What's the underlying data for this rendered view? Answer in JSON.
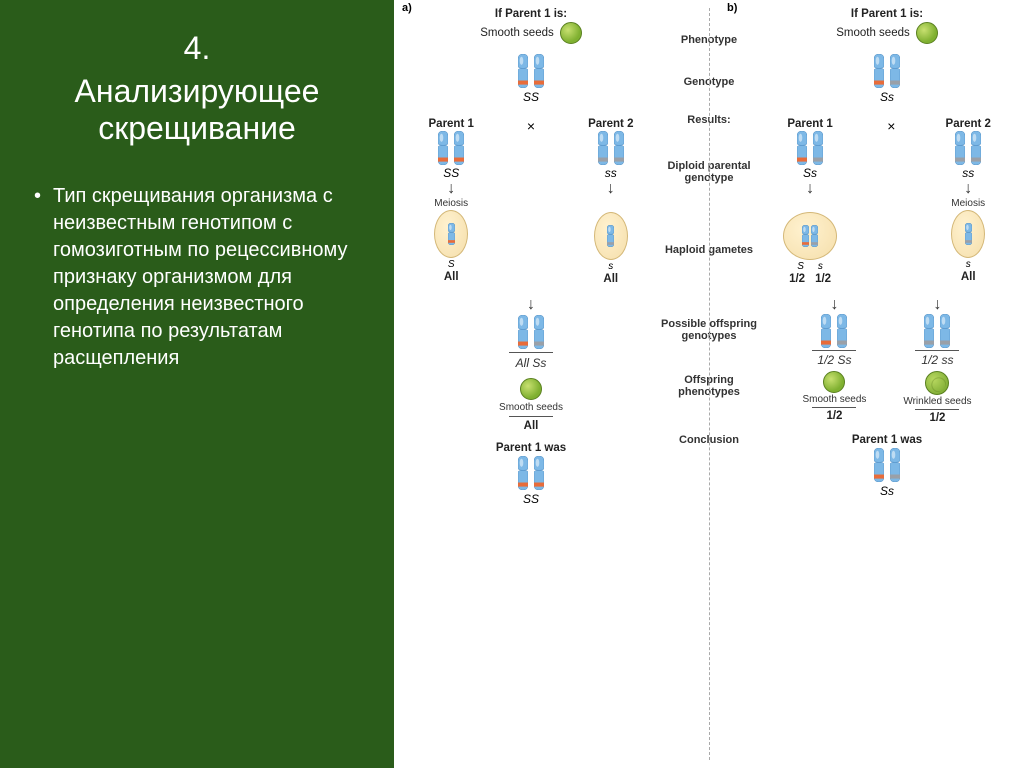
{
  "slide": {
    "number": "4.",
    "title": "Анализирующее скрещивание",
    "bullet": "Тип скрещивания организма с неизвестным генотипом с гомозиготным по рецессивному признаку организмом для определения неизвестного генотипа  по результатам расщепления"
  },
  "diagram": {
    "panel_labels": {
      "a": "a)",
      "b": "b)"
    },
    "header": {
      "if_parent": "If Parent 1 is:",
      "smooth": "Smooth seeds",
      "wrinkled": "Wrinkled seeds"
    },
    "center_labels": {
      "phenotype": "Phenotype",
      "genotype": "Genotype",
      "results": "Results:",
      "diploid": "Diploid parental genotype",
      "haploid": "Haploid gametes",
      "possible": "Possible offspring genotypes",
      "offspring_pheno": "Offspring phenotypes",
      "conclusion": "Conclusion"
    },
    "labels": {
      "parent1": "Parent 1",
      "parent2": "Parent 2",
      "meiosis": "Meiosis",
      "all": "All",
      "half": "1/2",
      "all_ss_dom": "All Ss",
      "half_ss_dom": "1/2 Ss",
      "half_ss_rec": "1/2 ss",
      "parent1_was": "Parent 1 was",
      "cross": "×"
    },
    "genotypes": {
      "SS": "SS",
      "Ss": "Ss",
      "ss": "ss",
      "S": "S",
      "s": "s"
    },
    "colors": {
      "chr_body": "#7db8e6",
      "chr_dark": "#3a7cb8",
      "band_dom": "#e86c3a",
      "band_rec": "#9aa0a8",
      "seed_green": "#8fc040",
      "seed_dark": "#5a8020",
      "gamete_fill": "#f5deaa",
      "bg_slide": "#2a5c1a",
      "bg_diagram": "#ffffff"
    },
    "fonts": {
      "title_pt": 24,
      "body_pt": 15,
      "label_pt": 9
    }
  }
}
